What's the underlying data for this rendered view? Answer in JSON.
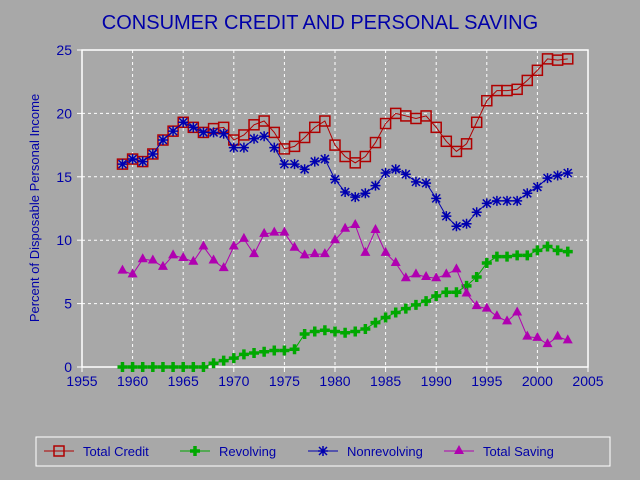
{
  "chart_data": {
    "type": "line",
    "title": "CONSUMER CREDIT AND PERSONAL SAVING",
    "xlabel": "",
    "ylabel": "Percent of Disposable Personal Income",
    "xlim": [
      1955,
      2005
    ],
    "ylim": [
      0,
      25
    ],
    "xticks": [
      1955,
      1960,
      1965,
      1970,
      1975,
      1980,
      1985,
      1990,
      1995,
      2000,
      2005
    ],
    "yticks": [
      0,
      5,
      10,
      15,
      20,
      25
    ],
    "grid": true,
    "legend_position": "bottom",
    "x": [
      1959,
      1960,
      1961,
      1962,
      1963,
      1964,
      1965,
      1966,
      1967,
      1968,
      1969,
      1970,
      1971,
      1972,
      1973,
      1974,
      1975,
      1976,
      1977,
      1978,
      1979,
      1980,
      1981,
      1982,
      1983,
      1984,
      1985,
      1986,
      1987,
      1988,
      1989,
      1990,
      1991,
      1992,
      1993,
      1994,
      1995,
      1996,
      1997,
      1998,
      1999,
      2000,
      2001,
      2002,
      2003
    ],
    "series": [
      {
        "name": "Total Credit",
        "color": "#b00000",
        "marker": "square",
        "values": [
          16.0,
          16.4,
          16.2,
          16.8,
          17.9,
          18.6,
          19.3,
          18.9,
          18.5,
          18.8,
          18.9,
          17.9,
          18.3,
          19.1,
          19.4,
          18.5,
          17.2,
          17.4,
          18.1,
          18.9,
          19.4,
          17.5,
          16.6,
          16.1,
          16.6,
          17.7,
          19.2,
          20.0,
          19.8,
          19.6,
          19.8,
          18.9,
          17.8,
          17.0,
          17.6,
          19.3,
          21.0,
          21.8,
          21.8,
          21.9,
          22.6,
          23.4,
          24.3,
          24.2,
          24.3
        ]
      },
      {
        "name": "Revolving",
        "color": "#00a800",
        "marker": "plus",
        "values": [
          0,
          0,
          0,
          0,
          0,
          0,
          0,
          0,
          0,
          0.3,
          0.5,
          0.7,
          1.0,
          1.1,
          1.2,
          1.3,
          1.3,
          1.4,
          2.6,
          2.8,
          2.9,
          2.8,
          2.7,
          2.8,
          3.0,
          3.5,
          3.9,
          4.3,
          4.6,
          4.9,
          5.2,
          5.6,
          5.9,
          5.9,
          6.4,
          7.1,
          8.2,
          8.7,
          8.7,
          8.8,
          8.8,
          9.2,
          9.5,
          9.2,
          9.1
        ]
      },
      {
        "name": "Nonrevolving",
        "color": "#0000b0",
        "marker": "star",
        "values": [
          16.0,
          16.4,
          16.2,
          16.8,
          17.9,
          18.6,
          19.3,
          18.9,
          18.5,
          18.5,
          18.4,
          17.3,
          17.3,
          18.0,
          18.2,
          17.3,
          16.0,
          16.0,
          15.6,
          16.2,
          16.4,
          14.8,
          13.8,
          13.4,
          13.7,
          14.3,
          15.3,
          15.6,
          15.2,
          14.6,
          14.5,
          13.3,
          11.9,
          11.1,
          11.3,
          12.2,
          12.9,
          13.1,
          13.1,
          13.1,
          13.7,
          14.2,
          14.9,
          15.1,
          15.3
        ]
      },
      {
        "name": "Total Saving",
        "color": "#b000b0",
        "marker": "triangle",
        "values": [
          7.6,
          7.3,
          8.5,
          8.4,
          7.9,
          8.8,
          8.6,
          8.3,
          9.5,
          8.4,
          7.8,
          9.5,
          10.1,
          8.9,
          10.5,
          10.6,
          10.6,
          9.4,
          8.8,
          8.9,
          8.9,
          10.0,
          10.9,
          11.2,
          9.0,
          10.8,
          9.0,
          8.2,
          7.0,
          7.3,
          7.1,
          7.0,
          7.3,
          7.7,
          5.8,
          4.8,
          4.6,
          4.0,
          3.6,
          4.3,
          2.4,
          2.3,
          1.8,
          2.4,
          2.1
        ]
      }
    ]
  }
}
